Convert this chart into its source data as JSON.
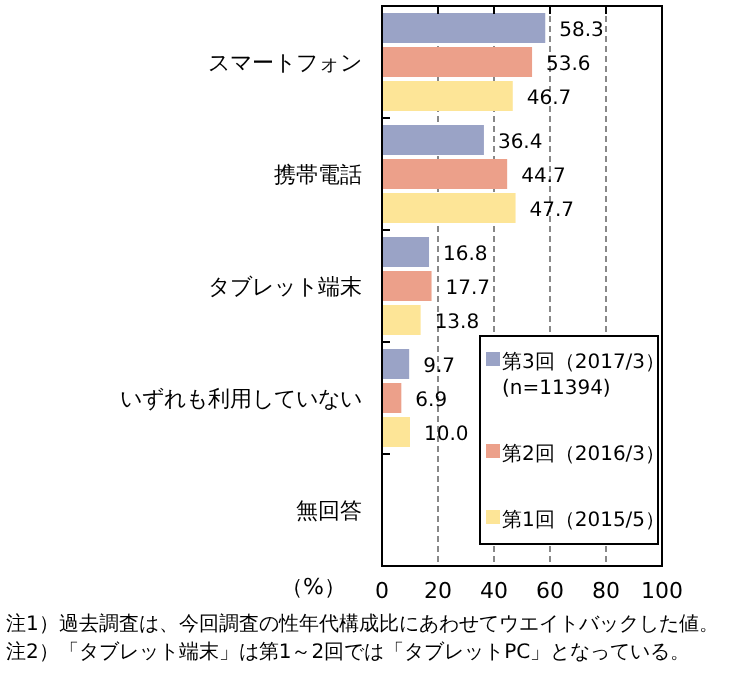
{
  "chart_data": {
    "type": "bar",
    "orientation": "horizontal",
    "xlabel": "（%）",
    "categories": [
      "スマートフォン",
      "携帯電話",
      "タブレット端末",
      "いずれも利用していない",
      "無回答"
    ],
    "series": [
      {
        "name": "第3回（2017/3）\n(n=11394)",
        "color": "#9aa3c6",
        "values": [
          58.3,
          36.4,
          16.8,
          9.7,
          null
        ],
        "value_labels": [
          "58.3",
          "36.4",
          "16.8",
          "9.7",
          null
        ]
      },
      {
        "name": "第2回（2016/3）",
        "color": "#eca08a",
        "values": [
          53.6,
          44.7,
          17.7,
          6.9,
          null
        ],
        "value_labels": [
          "53.6",
          "44.7",
          "17.7",
          "6.9",
          null
        ]
      },
      {
        "name": "第1回（2015/5）",
        "color": "#fde597",
        "values": [
          46.7,
          47.7,
          13.8,
          10,
          null
        ],
        "value_labels": [
          "46.7",
          "47.7",
          "13.8",
          "10.0",
          null
        ]
      }
    ],
    "xlim": [
      0,
      100
    ],
    "xticks": [
      0,
      20,
      40,
      60,
      80,
      100
    ],
    "grid": "x",
    "legend": "bottom right",
    "annotations": [
      "注1）過去調査は、今回調査の性年代構成比にあわせてウエイトバックした値。",
      "注2）「タブレット端末」は第1～2回では「タブレットPC」となっている。"
    ]
  }
}
